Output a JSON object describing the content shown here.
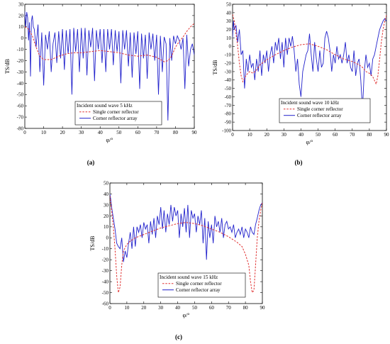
{
  "colors": {
    "single": "#e03030",
    "array": "#2222cc"
  },
  "chart_data": [
    {
      "type": "line",
      "caption": "(a)",
      "xlabel": "φ/°",
      "ylabel": "TS/dB",
      "xlim": [
        0,
        90
      ],
      "ylim": [
        -80,
        30
      ],
      "xticks": [
        0,
        10,
        20,
        30,
        40,
        50,
        60,
        70,
        80,
        90
      ],
      "yticks": [
        30,
        20,
        10,
        0,
        -10,
        -20,
        -30,
        -40,
        -50,
        -60,
        -70,
        -80
      ],
      "legend_title": "Incident sound wave 5 kHz",
      "series": [
        {
          "name": "Single corner reflector",
          "style": "dashed",
          "x": [
            0,
            2,
            4,
            6,
            8,
            10,
            14,
            18,
            22,
            26,
            30,
            35,
            40,
            45,
            50,
            55,
            60,
            65,
            70,
            74,
            76,
            78,
            80,
            82,
            84,
            86,
            88,
            90
          ],
          "y": [
            10,
            8,
            2,
            -8,
            -16,
            -19,
            -19,
            -16,
            -14,
            -13,
            -13,
            -12,
            -11,
            -12,
            -13,
            -15,
            -16,
            -15,
            -17,
            -21,
            -20,
            -16,
            -8,
            -3,
            1,
            6,
            10,
            13
          ]
        },
        {
          "name": "Corner reflector array",
          "style": "solid",
          "x": [
            0,
            0.5,
            1,
            1.5,
            2,
            2.5,
            3,
            3.5,
            4,
            4.5,
            5,
            6,
            7,
            8,
            9,
            10,
            11,
            12,
            13,
            14,
            15,
            16,
            17,
            18,
            19,
            20,
            21,
            22,
            23,
            24,
            25,
            26,
            27,
            28,
            29,
            30,
            31,
            32,
            33,
            34,
            35,
            36,
            37,
            38,
            39,
            40,
            41,
            42,
            43,
            44,
            45,
            46,
            47,
            48,
            49,
            50,
            51,
            52,
            53,
            54,
            55,
            56,
            57,
            58,
            59,
            60,
            61,
            62,
            63,
            64,
            65,
            66,
            67,
            68,
            69,
            70,
            71,
            72,
            73,
            74,
            75,
            76,
            77,
            78,
            79,
            80,
            81,
            82,
            83,
            84,
            85,
            86,
            87,
            88,
            89,
            90
          ],
          "y": [
            24,
            10,
            23,
            18,
            -2,
            14,
            -34,
            15,
            20,
            10,
            8,
            -8,
            12,
            -30,
            5,
            -42,
            3,
            -10,
            6,
            -30,
            -5,
            5,
            -22,
            6,
            -18,
            8,
            -28,
            7,
            -14,
            8,
            -50,
            9,
            -12,
            8,
            -30,
            9,
            -18,
            9,
            -33,
            7,
            -8,
            9,
            -38,
            7,
            -10,
            8,
            -22,
            8,
            -30,
            8,
            -10,
            8,
            -24,
            7,
            -12,
            6,
            -40,
            7,
            -10,
            7,
            -25,
            5,
            -35,
            5,
            -14,
            6,
            -45,
            4,
            -18,
            3,
            -36,
            5,
            -10,
            4,
            -20,
            3,
            -50,
            2,
            -30,
            1,
            -5,
            -73,
            0,
            -20,
            2,
            -5,
            2,
            -2,
            -10,
            0,
            -45,
            3,
            -25,
            -10,
            -5,
            -15
          ]
        }
      ]
    },
    {
      "type": "line",
      "caption": "(b)",
      "xlabel": "φ/°",
      "ylabel": "TS/dB",
      "xlim": [
        0,
        90
      ],
      "ylim": [
        -100,
        50
      ],
      "xticks": [
        0,
        10,
        20,
        30,
        40,
        50,
        60,
        70,
        80,
        90
      ],
      "yticks": [
        50,
        40,
        30,
        20,
        10,
        0,
        -10,
        -20,
        -30,
        -40,
        -50,
        -60,
        -70,
        -80,
        -90,
        -100
      ],
      "legend_title": "Incident sound wave 10 kHz",
      "series": [
        {
          "name": "Single corner reflector",
          "style": "dashed",
          "x": [
            0,
            1,
            2,
            3,
            4,
            5,
            6,
            7,
            8,
            10,
            12,
            14,
            16,
            20,
            25,
            30,
            35,
            40,
            45,
            50,
            55,
            60,
            65,
            70,
            74,
            76,
            78,
            80,
            82,
            84,
            85,
            86,
            87,
            88,
            89,
            90
          ],
          "y": [
            38,
            30,
            15,
            0,
            -20,
            -35,
            -42,
            -38,
            -34,
            -30,
            -32,
            -28,
            -22,
            -16,
            -10,
            -5,
            -1,
            2,
            3,
            0,
            -4,
            -10,
            -15,
            -18,
            -22,
            -25,
            -30,
            -32,
            -36,
            -45,
            -35,
            -15,
            5,
            20,
            30,
            37
          ]
        },
        {
          "name": "Corner reflector array",
          "style": "solid",
          "x": [
            0,
            0.5,
            1,
            2,
            3,
            4,
            5,
            6,
            7,
            8,
            9,
            10,
            11,
            12,
            13,
            14,
            15,
            16,
            17,
            18,
            19,
            20,
            21,
            22,
            23,
            24,
            25,
            26,
            27,
            28,
            29,
            30,
            31,
            32,
            33,
            34,
            35,
            36,
            37,
            38,
            39,
            40,
            41,
            42,
            43,
            44,
            45,
            46,
            47,
            48,
            49,
            50,
            51,
            52,
            53,
            54,
            55,
            56,
            57,
            58,
            59,
            60,
            61,
            62,
            63,
            64,
            65,
            66,
            67,
            68,
            69,
            70,
            71,
            72,
            73,
            74,
            75,
            76,
            77,
            78,
            79,
            80,
            81,
            82,
            83,
            84,
            85,
            86,
            87,
            88,
            89,
            90
          ],
          "y": [
            10,
            30,
            20,
            25,
            5,
            20,
            -10,
            -5,
            -50,
            -15,
            -30,
            -10,
            -25,
            -20,
            -40,
            -15,
            -30,
            -5,
            -35,
            -10,
            -20,
            -5,
            -30,
            -10,
            0,
            -20,
            5,
            -5,
            10,
            -15,
            5,
            -25,
            10,
            -10,
            10,
            0,
            12,
            -5,
            -30,
            -15,
            -45,
            -60,
            -30,
            -20,
            -10,
            -5,
            15,
            -10,
            -30,
            5,
            -15,
            -30,
            -5,
            -25,
            -20,
            10,
            18,
            10,
            -5,
            -30,
            -10,
            -20,
            0,
            -15,
            -10,
            -20,
            -10,
            5,
            -20,
            -10,
            -25,
            -30,
            -5,
            -35,
            -20,
            -15,
            -40,
            -75,
            -30,
            -10,
            -25,
            -20,
            -35,
            -15,
            -10,
            0,
            10,
            20,
            25,
            30,
            33,
            30
          ]
        }
      ]
    },
    {
      "type": "line",
      "caption": "(c)",
      "xlabel": "φ/°",
      "ylabel": "TS/dB",
      "xlim": [
        0,
        90
      ],
      "ylim": [
        -60,
        50
      ],
      "xticks": [
        0,
        10,
        20,
        30,
        40,
        50,
        60,
        70,
        80,
        90
      ],
      "yticks": [
        50,
        40,
        30,
        20,
        10,
        0,
        -10,
        -20,
        -30,
        -40,
        -50,
        -60
      ],
      "legend_title": "Incident sound wave 15 kHz",
      "series": [
        {
          "name": "Single corner reflector",
          "style": "dashed",
          "x": [
            0,
            1,
            2,
            3,
            4,
            5,
            6,
            7,
            8,
            10,
            12,
            15,
            20,
            25,
            30,
            35,
            40,
            45,
            50,
            55,
            60,
            65,
            70,
            75,
            78,
            80,
            82,
            83,
            84,
            85,
            86,
            87,
            88,
            89,
            90
          ],
          "y": [
            38,
            25,
            10,
            -10,
            -35,
            -50,
            -45,
            -25,
            -12,
            -6,
            -3,
            0,
            3,
            6,
            9,
            11,
            13,
            14,
            13,
            11,
            8,
            5,
            1,
            -4,
            -8,
            -15,
            -25,
            -40,
            -50,
            -48,
            -25,
            0,
            15,
            25,
            32
          ]
        },
        {
          "name": "Corner reflector array",
          "style": "solid",
          "x": [
            0,
            0.5,
            1,
            2,
            3,
            4,
            5,
            6,
            7,
            8,
            9,
            10,
            11,
            12,
            13,
            14,
            15,
            16,
            17,
            18,
            19,
            20,
            21,
            22,
            23,
            24,
            25,
            26,
            27,
            28,
            29,
            30,
            31,
            32,
            33,
            34,
            35,
            36,
            37,
            38,
            39,
            40,
            41,
            42,
            43,
            44,
            45,
            46,
            47,
            48,
            49,
            50,
            51,
            52,
            53,
            54,
            55,
            56,
            57,
            58,
            59,
            60,
            61,
            62,
            63,
            64,
            65,
            66,
            67,
            68,
            69,
            70,
            71,
            72,
            73,
            74,
            75,
            76,
            77,
            78,
            79,
            80,
            81,
            82,
            83,
            84,
            85,
            86,
            87,
            88,
            89,
            90
          ],
          "y": [
            40,
            35,
            28,
            18,
            8,
            -5,
            -8,
            -10,
            0,
            -22,
            -12,
            -18,
            -5,
            5,
            -10,
            10,
            -8,
            10,
            5,
            12,
            0,
            14,
            8,
            12,
            -5,
            15,
            3,
            18,
            0,
            20,
            12,
            28,
            8,
            25,
            5,
            22,
            12,
            30,
            15,
            28,
            20,
            25,
            0,
            22,
            10,
            27,
            5,
            30,
            0,
            25,
            18,
            22,
            5,
            20,
            12,
            25,
            -5,
            18,
            -20,
            15,
            0,
            12,
            -5,
            20,
            10,
            15,
            5,
            18,
            0,
            12,
            15,
            8,
            10,
            5,
            12,
            0,
            5,
            8,
            3,
            10,
            0,
            8,
            5,
            0,
            10,
            5,
            3,
            12,
            18,
            25,
            30,
            32
          ]
        }
      ]
    }
  ]
}
